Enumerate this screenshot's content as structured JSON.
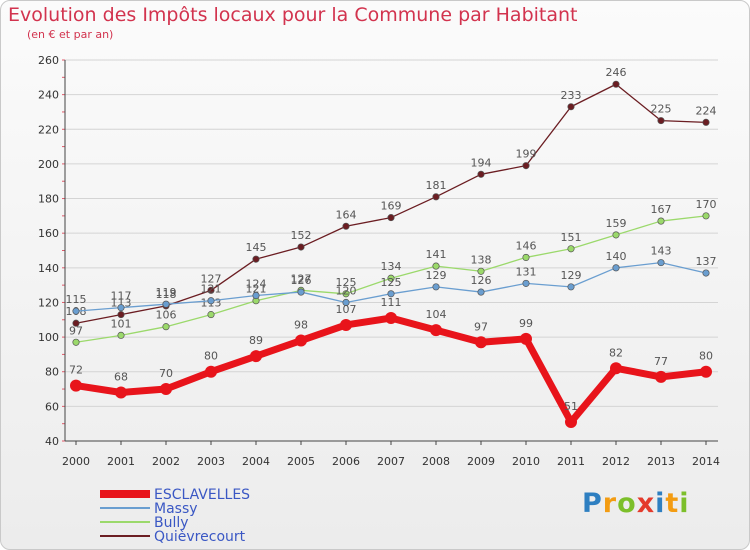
{
  "chart_data": {
    "type": "line",
    "title": "Evolution des Impôts locaux pour la Commune par Habitant",
    "subtitle": "(en € et par an)",
    "xlabel": "",
    "ylabel": "",
    "ylim": [
      40,
      260
    ],
    "yticks": [
      40,
      60,
      80,
      100,
      120,
      140,
      160,
      180,
      200,
      220,
      240,
      260
    ],
    "x": [
      "2000",
      "2001",
      "2002",
      "2003",
      "2004",
      "2005",
      "2006",
      "2007",
      "2008",
      "2009",
      "2010",
      "2011",
      "2012",
      "2013",
      "2014"
    ],
    "grid": "horizontal",
    "legend_position": "bottom-left",
    "series": [
      {
        "name": "Quièvrecourt",
        "color": "#6b1d22",
        "width": 1.3,
        "labels": "above",
        "values": [
          108,
          113,
          118,
          127,
          145,
          152,
          164,
          169,
          181,
          194,
          199,
          233,
          246,
          225,
          224
        ]
      },
      {
        "name": "Bully",
        "color": "#9bd96b",
        "width": 1.3,
        "labels": "above",
        "values": [
          97,
          101,
          106,
          113,
          121,
          127,
          125,
          134,
          141,
          138,
          146,
          151,
          159,
          167,
          170
        ]
      },
      {
        "name": "Massy",
        "color": "#6a9ed0",
        "width": 1.3,
        "labels": "above",
        "values": [
          115,
          117,
          119,
          121,
          124,
          126,
          120,
          125,
          129,
          126,
          131,
          129,
          140,
          143,
          137
        ]
      },
      {
        "name": "ESCLAVELLES",
        "color": "#e8141b",
        "width": 7,
        "labels": "above",
        "values": [
          72,
          68,
          70,
          80,
          89,
          98,
          107,
          111,
          104,
          97,
          99,
          51,
          82,
          77,
          80
        ]
      }
    ]
  },
  "legend": [
    {
      "name": "ESCLAVELLES",
      "color": "#e8141b"
    },
    {
      "name": "Massy",
      "color": "#6a9ed0"
    },
    {
      "name": "Bully",
      "color": "#9bd96b"
    },
    {
      "name": "Quièvrecourt",
      "color": "#6b1d22"
    }
  ],
  "logo": {
    "p": "P",
    "r": "r",
    "o": "o",
    "x": "x",
    "i": "i",
    "t": "t",
    "i2": "i"
  }
}
